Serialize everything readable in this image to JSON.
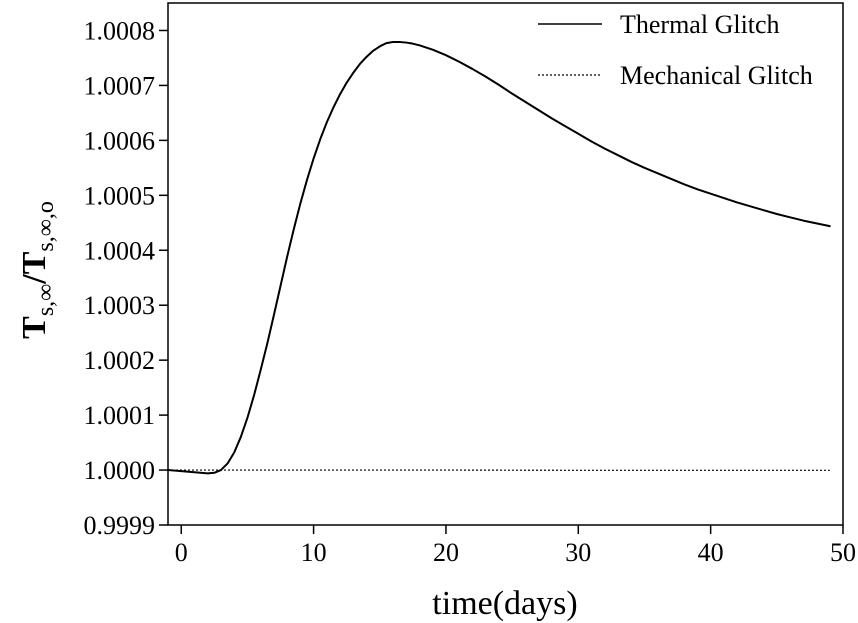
{
  "chart_data": {
    "type": "line",
    "title": "",
    "xlabel": "time(days)",
    "ylabel": {
      "base": "T",
      "sub1": "s,∞",
      "slash": "/",
      "sub2": "s,∞,o"
    },
    "xlim": [
      -1,
      50
    ],
    "ylim": [
      0.9999,
      1.00085
    ],
    "x_ticks": [
      0,
      10,
      20,
      30,
      40,
      50
    ],
    "x_tick_labels": [
      "0",
      "10",
      "20",
      "30",
      "40",
      "50"
    ],
    "y_ticks": [
      0.9999,
      1.0,
      1.0001,
      1.0002,
      1.0003,
      1.0004,
      1.0005,
      1.0006,
      1.0007,
      1.0008
    ],
    "y_tick_labels": [
      "0.9999",
      "1.0000",
      "1.0001",
      "1.0002",
      "1.0003",
      "1.0004",
      "1.0005",
      "1.0006",
      "1.0007",
      "1.0008"
    ],
    "grid": false,
    "legend_position": "top-right",
    "series": [
      {
        "name": "Thermal Glitch",
        "style": "solid",
        "x": [
          -1,
          0,
          1,
          2,
          2.5,
          3,
          3.5,
          4,
          4.5,
          5,
          5.5,
          6,
          6.5,
          7,
          7.5,
          8,
          8.5,
          9,
          9.5,
          10,
          10.5,
          11,
          11.5,
          12,
          12.5,
          13,
          13.5,
          14,
          14.5,
          15,
          15.5,
          16,
          16.5,
          17,
          17.5,
          18,
          19,
          20,
          21,
          22,
          23,
          24,
          25,
          26,
          27,
          28,
          29,
          30,
          31,
          32,
          33,
          34,
          35,
          36,
          37,
          38,
          39,
          40,
          41,
          42,
          43,
          44,
          45,
          46,
          47,
          48,
          49
        ],
        "values": [
          1.0,
          0.999998,
          0.999996,
          0.999994,
          0.999995,
          1.0,
          1.000012,
          1.000032,
          1.00006,
          1.000095,
          1.000136,
          1.000182,
          1.00023,
          1.000282,
          1.000335,
          1.000388,
          1.000438,
          1.000485,
          1.000528,
          1.000567,
          1.000602,
          1.000633,
          1.00066,
          1.000684,
          1.000705,
          1.000723,
          1.000739,
          1.000752,
          1.000763,
          1.000771,
          1.000777,
          1.000779,
          1.000779,
          1.000778,
          1.000776,
          1.000773,
          1.000765,
          1.000755,
          1.000743,
          1.00073,
          1.000716,
          1.000701,
          1.000685,
          1.00067,
          1.000655,
          1.00064,
          1.000626,
          1.000612,
          1.000598,
          1.000585,
          1.000573,
          1.000561,
          1.00055,
          1.00054,
          1.00053,
          1.00052,
          1.000511,
          1.000503,
          1.000495,
          1.000487,
          1.00048,
          1.000473,
          1.000466,
          1.00046,
          1.000454,
          1.000449,
          1.000444
        ]
      },
      {
        "name": "Mechanical Glitch",
        "style": "dotted",
        "x": [
          -1,
          3,
          10,
          20,
          30,
          40,
          49
        ],
        "values": [
          1.0,
          1.0,
          1.0,
          1.0,
          0.9999995,
          0.9999995,
          0.9999995
        ]
      }
    ]
  }
}
